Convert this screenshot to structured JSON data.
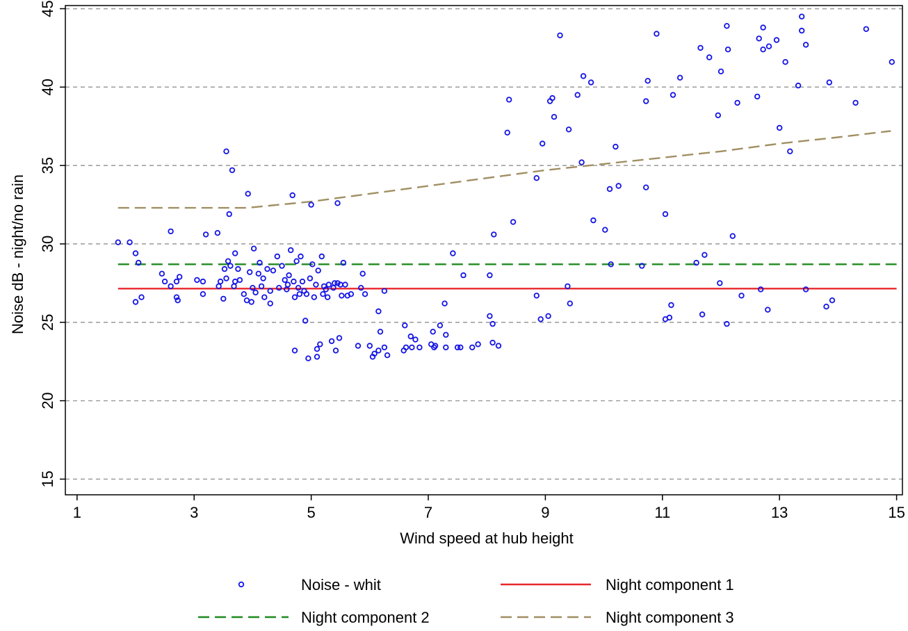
{
  "chart_data": {
    "type": "scatter",
    "title": "",
    "xlabel": "Wind speed at hub height",
    "ylabel": "Noise dB - night/no rain",
    "xlim": [
      0.8,
      15.1
    ],
    "ylim": [
      14,
      45.2
    ],
    "xticks": [
      1,
      3,
      5,
      7,
      9,
      11,
      13,
      15
    ],
    "yticks": [
      15,
      20,
      25,
      30,
      35,
      40,
      45
    ],
    "xtick_labels": [
      "1",
      "3",
      "5",
      "7",
      "9",
      "11",
      "13",
      "15"
    ],
    "ytick_labels": [
      "15",
      "20",
      "25",
      "30",
      "35",
      "40",
      "45"
    ],
    "grid": "horizontal dashed at y ticks",
    "legend_position": "bottom",
    "colors": {
      "scatter": "#1414e6",
      "component1": "#e8262b",
      "component2": "#1f8a1f",
      "component3": "#a08f62",
      "grid": "#a0a0a0"
    },
    "series": [
      {
        "name": "Noise - whit",
        "kind": "scatter",
        "points": [
          [
            1.7,
            30.1
          ],
          [
            1.9,
            30.1
          ],
          [
            2.0,
            29.4
          ],
          [
            2.0,
            26.3
          ],
          [
            2.05,
            28.8
          ],
          [
            2.1,
            26.6
          ],
          [
            2.45,
            28.1
          ],
          [
            2.5,
            27.6
          ],
          [
            2.6,
            30.8
          ],
          [
            2.6,
            27.3
          ],
          [
            2.7,
            26.6
          ],
          [
            2.7,
            27.6
          ],
          [
            2.72,
            26.4
          ],
          [
            2.75,
            27.9
          ],
          [
            3.05,
            27.7
          ],
          [
            3.15,
            27.6
          ],
          [
            3.15,
            26.8
          ],
          [
            3.2,
            30.6
          ],
          [
            3.4,
            30.7
          ],
          [
            3.42,
            27.3
          ],
          [
            3.45,
            27.6
          ],
          [
            3.5,
            26.5
          ],
          [
            3.52,
            28.4
          ],
          [
            3.55,
            27.8
          ],
          [
            3.55,
            35.9
          ],
          [
            3.58,
            28.9
          ],
          [
            3.6,
            31.9
          ],
          [
            3.62,
            28.6
          ],
          [
            3.65,
            34.7
          ],
          [
            3.68,
            27.3
          ],
          [
            3.7,
            27.6
          ],
          [
            3.7,
            29.4
          ],
          [
            3.75,
            28.4
          ],
          [
            3.78,
            27.7
          ],
          [
            3.85,
            26.8
          ],
          [
            3.9,
            26.4
          ],
          [
            3.92,
            33.2
          ],
          [
            3.95,
            28.2
          ],
          [
            3.98,
            26.3
          ],
          [
            4.0,
            27.2
          ],
          [
            4.02,
            29.7
          ],
          [
            4.05,
            26.9
          ],
          [
            4.1,
            28.1
          ],
          [
            4.12,
            28.8
          ],
          [
            4.15,
            27.3
          ],
          [
            4.18,
            27.8
          ],
          [
            4.2,
            26.6
          ],
          [
            4.25,
            28.4
          ],
          [
            4.3,
            26.2
          ],
          [
            4.3,
            27.0
          ],
          [
            4.35,
            28.3
          ],
          [
            4.42,
            29.2
          ],
          [
            4.45,
            27.2
          ],
          [
            4.5,
            28.6
          ],
          [
            4.55,
            27.7
          ],
          [
            4.58,
            27.1
          ],
          [
            4.6,
            27.4
          ],
          [
            4.62,
            28.0
          ],
          [
            4.65,
            29.6
          ],
          [
            4.68,
            33.1
          ],
          [
            4.7,
            27.6
          ],
          [
            4.72,
            26.6
          ],
          [
            4.72,
            23.2
          ],
          [
            4.75,
            28.9
          ],
          [
            4.78,
            27.2
          ],
          [
            4.8,
            26.8
          ],
          [
            4.82,
            29.2
          ],
          [
            4.85,
            27.6
          ],
          [
            4.88,
            27.0
          ],
          [
            4.9,
            25.1
          ],
          [
            4.92,
            26.8
          ],
          [
            4.95,
            22.7
          ],
          [
            4.98,
            27.8
          ],
          [
            5.0,
            32.5
          ],
          [
            5.02,
            28.7
          ],
          [
            5.05,
            26.6
          ],
          [
            5.08,
            27.4
          ],
          [
            5.1,
            23.3
          ],
          [
            5.1,
            22.8
          ],
          [
            5.12,
            28.3
          ],
          [
            5.15,
            23.6
          ],
          [
            5.18,
            29.2
          ],
          [
            5.2,
            26.8
          ],
          [
            5.22,
            27.3
          ],
          [
            5.25,
            27.1
          ],
          [
            5.28,
            26.6
          ],
          [
            5.3,
            27.4
          ],
          [
            5.35,
            23.8
          ],
          [
            5.38,
            27.2
          ],
          [
            5.4,
            27.5
          ],
          [
            5.42,
            23.2
          ],
          [
            5.45,
            32.6
          ],
          [
            5.45,
            27.5
          ],
          [
            5.48,
            24.0
          ],
          [
            5.5,
            27.4
          ],
          [
            5.52,
            26.7
          ],
          [
            5.55,
            28.8
          ],
          [
            5.58,
            27.4
          ],
          [
            5.62,
            26.7
          ],
          [
            5.68,
            26.8
          ],
          [
            5.8,
            23.5
          ],
          [
            5.85,
            27.2
          ],
          [
            5.88,
            28.1
          ],
          [
            5.92,
            26.8
          ],
          [
            6.0,
            23.5
          ],
          [
            6.05,
            22.8
          ],
          [
            6.08,
            23.0
          ],
          [
            6.15,
            25.7
          ],
          [
            6.15,
            23.2
          ],
          [
            6.18,
            24.4
          ],
          [
            6.25,
            27.0
          ],
          [
            6.25,
            23.4
          ],
          [
            6.3,
            22.9
          ],
          [
            6.58,
            23.2
          ],
          [
            6.6,
            24.8
          ],
          [
            6.62,
            23.4
          ],
          [
            6.7,
            24.1
          ],
          [
            6.72,
            23.4
          ],
          [
            6.78,
            23.9
          ],
          [
            6.85,
            23.4
          ],
          [
            7.05,
            23.6
          ],
          [
            7.08,
            24.4
          ],
          [
            7.1,
            23.4
          ],
          [
            7.12,
            23.5
          ],
          [
            7.2,
            24.8
          ],
          [
            7.28,
            26.2
          ],
          [
            7.3,
            24.2
          ],
          [
            7.3,
            23.4
          ],
          [
            7.42,
            29.4
          ],
          [
            7.5,
            23.4
          ],
          [
            7.55,
            23.4
          ],
          [
            7.6,
            28.0
          ],
          [
            7.75,
            23.4
          ],
          [
            7.85,
            23.6
          ],
          [
            8.05,
            28.0
          ],
          [
            8.05,
            25.4
          ],
          [
            8.1,
            24.9
          ],
          [
            8.1,
            23.7
          ],
          [
            8.12,
            30.6
          ],
          [
            8.2,
            23.5
          ],
          [
            8.35,
            37.1
          ],
          [
            8.38,
            39.2
          ],
          [
            8.45,
            31.4
          ],
          [
            8.85,
            34.2
          ],
          [
            8.85,
            26.7
          ],
          [
            8.92,
            25.2
          ],
          [
            8.95,
            36.4
          ],
          [
            9.05,
            25.4
          ],
          [
            9.08,
            39.1
          ],
          [
            9.12,
            39.3
          ],
          [
            9.15,
            38.1
          ],
          [
            9.25,
            43.3
          ],
          [
            9.38,
            27.3
          ],
          [
            9.4,
            37.3
          ],
          [
            9.42,
            26.2
          ],
          [
            9.55,
            39.5
          ],
          [
            9.62,
            35.2
          ],
          [
            9.65,
            40.7
          ],
          [
            9.78,
            40.3
          ],
          [
            9.82,
            31.5
          ],
          [
            10.02,
            30.9
          ],
          [
            10.1,
            33.5
          ],
          [
            10.12,
            28.7
          ],
          [
            10.2,
            36.2
          ],
          [
            10.25,
            33.7
          ],
          [
            10.65,
            28.6
          ],
          [
            10.72,
            33.6
          ],
          [
            10.72,
            39.1
          ],
          [
            10.75,
            40.4
          ],
          [
            10.9,
            43.4
          ],
          [
            11.05,
            31.9
          ],
          [
            11.05,
            25.2
          ],
          [
            11.12,
            25.3
          ],
          [
            11.15,
            26.1
          ],
          [
            11.18,
            39.5
          ],
          [
            11.3,
            40.6
          ],
          [
            11.58,
            28.8
          ],
          [
            11.65,
            42.5
          ],
          [
            11.68,
            25.5
          ],
          [
            11.72,
            29.3
          ],
          [
            11.8,
            41.9
          ],
          [
            11.95,
            38.2
          ],
          [
            11.98,
            27.5
          ],
          [
            12.0,
            41.0
          ],
          [
            12.1,
            43.9
          ],
          [
            12.1,
            24.9
          ],
          [
            12.12,
            42.4
          ],
          [
            12.2,
            30.5
          ],
          [
            12.28,
            39.0
          ],
          [
            12.35,
            26.7
          ],
          [
            12.62,
            39.4
          ],
          [
            12.65,
            43.1
          ],
          [
            12.68,
            27.1
          ],
          [
            12.72,
            43.8
          ],
          [
            12.72,
            42.4
          ],
          [
            12.8,
            25.8
          ],
          [
            12.82,
            42.6
          ],
          [
            12.95,
            43.0
          ],
          [
            13.0,
            37.4
          ],
          [
            13.1,
            41.6
          ],
          [
            13.18,
            35.9
          ],
          [
            13.32,
            40.1
          ],
          [
            13.38,
            44.5
          ],
          [
            13.38,
            43.6
          ],
          [
            13.45,
            42.7
          ],
          [
            13.45,
            27.1
          ],
          [
            13.8,
            26.0
          ],
          [
            13.85,
            40.3
          ],
          [
            13.9,
            26.4
          ],
          [
            14.3,
            39.0
          ],
          [
            14.48,
            43.7
          ],
          [
            14.92,
            41.6
          ]
        ]
      },
      {
        "name": "Night component 1",
        "kind": "line",
        "dash": "solid",
        "points": [
          [
            1.7,
            27.15
          ],
          [
            15.0,
            27.15
          ]
        ]
      },
      {
        "name": "Night component 2",
        "kind": "line",
        "dash": "dashed",
        "points": [
          [
            1.7,
            28.7
          ],
          [
            15.0,
            28.7
          ]
        ]
      },
      {
        "name": "Night component 3",
        "kind": "line",
        "dash": "dashed",
        "points": [
          [
            1.7,
            32.3
          ],
          [
            3.4,
            32.3
          ],
          [
            3.9,
            32.3
          ],
          [
            5.0,
            32.7
          ],
          [
            6.0,
            33.2
          ],
          [
            7.0,
            33.7
          ],
          [
            8.0,
            34.2
          ],
          [
            9.0,
            34.7
          ],
          [
            10.0,
            35.1
          ],
          [
            11.0,
            35.5
          ],
          [
            12.0,
            35.9
          ],
          [
            13.0,
            36.4
          ],
          [
            14.0,
            36.8
          ],
          [
            14.9,
            37.2
          ]
        ]
      }
    ]
  }
}
